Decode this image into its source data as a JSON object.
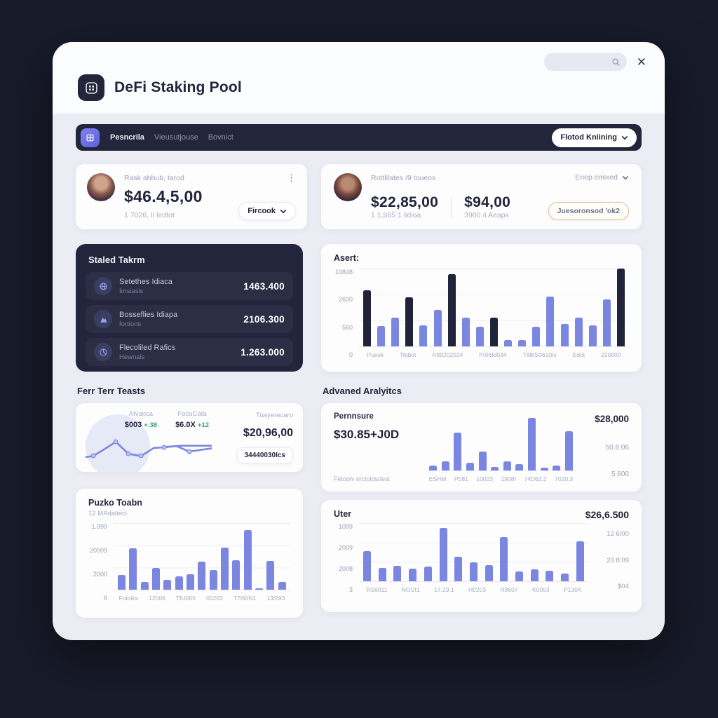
{
  "header": {
    "title": "DeFi Staking Pool",
    "close_label": "✕"
  },
  "nav": {
    "items": [
      {
        "label": "Pesncrila"
      },
      {
        "label": "Vieusutjouse"
      },
      {
        "label": "Bovnict"
      }
    ],
    "action_label": "Flotod Kniining"
  },
  "stats": {
    "card1": {
      "label": "Rask ahbub, tarod",
      "value": "$46.4,5,00",
      "sub": "1 7026, Il ledtot",
      "button": "Fircook"
    },
    "card2": {
      "label": "Rottlilates /9 toueos",
      "value1": "$22,85,00",
      "sub1": "1.1,885 1 lidioa",
      "value2": "$94,00",
      "sub2": "3900 /i Aeaps",
      "dropdown": "Enep cmixed",
      "button": "Juesoronsod 'ok2"
    }
  },
  "staked": {
    "title": "Staled Takrm",
    "rows": [
      {
        "label": "Setethes Idiaca",
        "sub": "Imsiasis",
        "value": "1463.400"
      },
      {
        "label": "Bosseflies Idiapa",
        "sub": "fortions",
        "value": "2106.300"
      },
      {
        "label": "Flecoliled Rafics",
        "sub": "Hewnais",
        "value": "1.263.000"
      }
    ]
  },
  "overview": {
    "section_title": "Ferr Terr Teasts",
    "col1_label": "Atvanca",
    "col1_value": "$003",
    "col1_change": "+.38",
    "col2_label": "FocuCata",
    "col2_value": "$6.0X",
    "col2_change": "+12",
    "col3_label": "Tuayerecaro",
    "col3_value": "$20,96,00",
    "col3_button": "34440030Ics"
  },
  "analytics": {
    "section_title": "Advaned Aralyitcs",
    "label": "Pernnsure",
    "value": "$30.85+J0D",
    "footnote": "Fetoolv ercioidsoest",
    "right_top": "$28,000",
    "right_mid": "50.6:06",
    "right_bottom": "5.600"
  },
  "puzko": {
    "title": "Puzko Toabn",
    "subtitle": "12 MAdatieci"
  },
  "uter": {
    "title": "Uter",
    "total": "$26,6.500",
    "right_values": [
      "12 6/00",
      "23 8:09",
      "$04"
    ]
  },
  "colors": {
    "accent_purple": "#6e72e9",
    "bar_blue": "#7b86e0",
    "bar_dark": "#20233a",
    "nav_dark": "#23263a",
    "panel_dark": "#22253c",
    "positive_green": "#3da36c",
    "tan_border": "#ddc091",
    "window_bg": "#ecedf4",
    "page_bg": "#181b2a"
  },
  "chart_data": [
    {
      "name": "assets",
      "type": "bar",
      "title": "Asert:",
      "ylabel": "",
      "xlabel": "",
      "grid": true,
      "yticks": [
        "10848",
        "2600",
        "560",
        "0"
      ],
      "categories": [
        "Puesk",
        "Tibbot",
        "R89202024",
        "Pr06Id034",
        "T88IS0610Is",
        "Edot",
        "220000"
      ],
      "bars": [
        {
          "v": 72,
          "c": "dark"
        },
        {
          "v": 26
        },
        {
          "v": 37
        },
        {
          "v": 63,
          "c": "dark"
        },
        {
          "v": 27
        },
        {
          "v": 47
        },
        {
          "v": 93,
          "c": "dark"
        },
        {
          "v": 37
        },
        {
          "v": 25
        },
        {
          "v": 37,
          "c": "dark"
        },
        {
          "v": 8
        },
        {
          "v": 8
        },
        {
          "v": 25
        },
        {
          "v": 64
        },
        {
          "v": 29
        },
        {
          "v": 37
        },
        {
          "v": 27
        },
        {
          "v": 60
        },
        {
          "v": 100,
          "c": "dark"
        }
      ]
    },
    {
      "name": "overview-line",
      "type": "line",
      "title": "Ferr Terr Teasts",
      "series": [
        {
          "name": "main",
          "points": [
            [
              0,
              80
            ],
            [
              6,
              77
            ],
            [
              14,
              58
            ],
            [
              24,
              33
            ],
            [
              34,
              70
            ],
            [
              44,
              77
            ],
            [
              54,
              52
            ],
            [
              62,
              50
            ],
            [
              72,
              46
            ],
            [
              82,
              63
            ],
            [
              100,
              53
            ]
          ]
        },
        {
          "name": "secondary",
          "points": [
            [
              62,
              49
            ],
            [
              76,
              45
            ],
            [
              100,
              45
            ]
          ]
        }
      ],
      "dots": [
        [
          6,
          77
        ],
        [
          24,
          33
        ],
        [
          34,
          70
        ],
        [
          44,
          77
        ],
        [
          62,
          50
        ],
        [
          82,
          63
        ]
      ]
    },
    {
      "name": "analytics",
      "type": "bar",
      "title": "Pernnsure",
      "grid": false,
      "categories": [
        "ESHM",
        "P081",
        "10023",
        "1908f",
        "74D62.2",
        "7020.3"
      ],
      "bars": [
        10,
        18,
        72,
        15,
        36,
        7,
        17,
        12,
        100,
        5,
        10,
        75
      ]
    },
    {
      "name": "puzko",
      "type": "bar",
      "title": "Puzko Toabn",
      "grid": true,
      "yticks": [
        "1.999",
        "20009",
        "2000",
        "8"
      ],
      "categories": [
        "Fotoiks",
        "12006",
        "TIU005",
        "00203",
        "T7l60N1",
        "13/293"
      ],
      "bars": [
        22,
        62,
        12,
        33,
        15,
        20,
        23,
        42,
        30,
        63,
        44,
        90,
        2,
        43,
        12
      ]
    },
    {
      "name": "uter",
      "type": "bar",
      "title": "Uter",
      "grid": true,
      "yticks": [
        "1099",
        "2009",
        "2008",
        "3"
      ],
      "categories": [
        "RS6011",
        "NOUI1",
        "17.29.1",
        "H0203",
        "R8607",
        "K0053",
        "P1304"
      ],
      "bars": [
        52,
        23,
        27,
        22,
        25,
        92,
        42,
        33,
        28,
        76,
        17,
        20,
        18,
        13,
        69
      ]
    }
  ]
}
